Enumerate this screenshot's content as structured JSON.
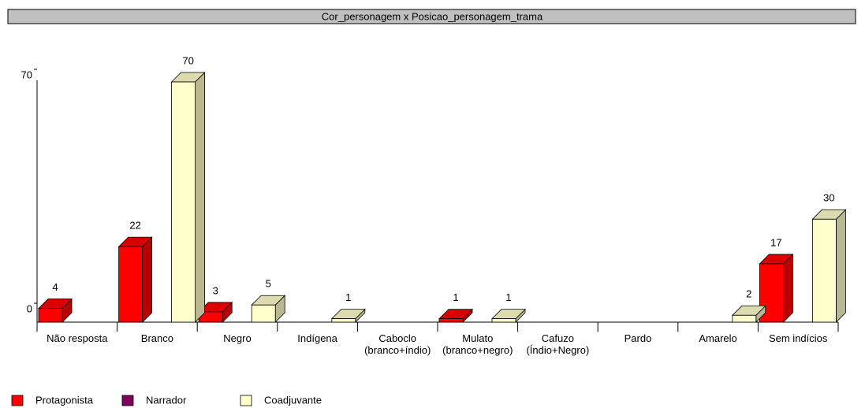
{
  "chart_data": {
    "type": "bar3d",
    "title": "Cor_personagem x Posicao_personagem_trama",
    "categories": [
      "Não resposta",
      "Branco",
      "Negro",
      "Indígena",
      "Caboclo (branco+índio)",
      "Mulato (branco+negro)",
      "Cafuzo (Índio+Negro)",
      "Pardo",
      "Amarelo",
      "Sem indícios"
    ],
    "series": [
      {
        "name": "Protagonista",
        "color": "#ff0000",
        "values": [
          4,
          22,
          3,
          0,
          0,
          1,
          0,
          0,
          0,
          17
        ]
      },
      {
        "name": "Narrador",
        "color": "#800060",
        "values": [
          0,
          0,
          0,
          0,
          0,
          0,
          0,
          0,
          0,
          0
        ]
      },
      {
        "name": "Coadjuvante",
        "color": "#ffffcc",
        "values": [
          0,
          70,
          5,
          1,
          0,
          1,
          0,
          0,
          2,
          30
        ]
      }
    ],
    "ylim": [
      0,
      70
    ],
    "yticks": [
      0,
      70
    ],
    "legend": "bottom-left"
  }
}
